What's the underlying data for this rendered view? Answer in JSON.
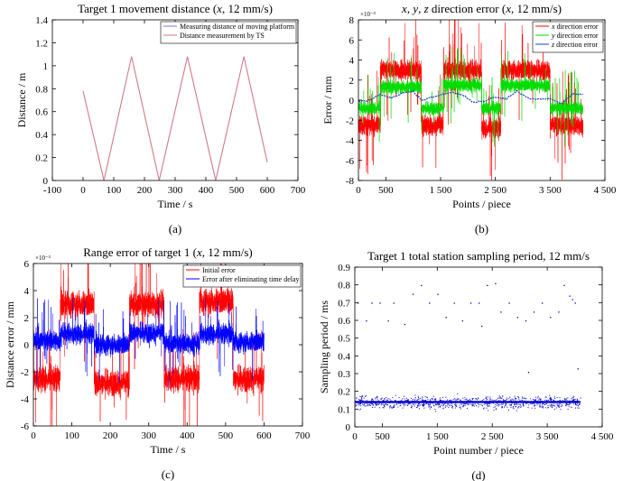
{
  "chart_data": [
    {
      "type": "line",
      "panel": "(a)",
      "title": "Target 1 movement distance (x, 12 mm/s)",
      "title_parts": [
        "Target 1 movement distance (",
        "x",
        ", 12 mm/s)"
      ],
      "xlabel": "Time / s",
      "ylabel": "Distance / m",
      "xlim": [
        -100,
        700
      ],
      "ylim": [
        0,
        1.4
      ],
      "xticks": [
        -100,
        0,
        100,
        200,
        300,
        400,
        500,
        600,
        700
      ],
      "yticks": [
        0,
        0.2,
        0.4,
        0.6,
        0.8,
        1.0,
        1.2,
        1.4
      ],
      "ytick_labels": [
        "0",
        "0.2",
        "0.4",
        "0.6",
        "0.8",
        "1",
        "1.2",
        "1.4"
      ],
      "legend": [
        "Measuring distance of moving platform",
        "Distance measurement by TS"
      ],
      "legend_position": "top-right",
      "colors": [
        "#7777cc",
        "#dd7777"
      ],
      "series": [
        {
          "name": "Measuring distance of moving platform",
          "x": [
            0,
            68,
            158,
            248,
            340,
            432,
            524,
            600
          ],
          "y": [
            0.78,
            0.0,
            1.08,
            0.0,
            1.08,
            0.0,
            1.08,
            0.16
          ]
        },
        {
          "name": "Distance measurement by TS",
          "x": [
            0,
            68,
            158,
            248,
            340,
            432,
            524,
            600
          ],
          "y": [
            0.78,
            0.0,
            1.08,
            0.0,
            1.08,
            0.0,
            1.08,
            0.16
          ]
        }
      ]
    },
    {
      "type": "line",
      "panel": "(b)",
      "title": "x, y, z direction error (x, 12 mm/s)",
      "title_parts": [
        "x",
        ", ",
        "y",
        ", ",
        "z",
        " direction error (",
        "x",
        ", 12 mm/s)"
      ],
      "xlabel": "Points / piece",
      "ylabel": "Error / mm",
      "y_multiplier": "×10⁻³",
      "xlim": [
        0,
        4500
      ],
      "ylim": [
        -8,
        8
      ],
      "xticks": [
        0,
        500,
        1500,
        2500,
        3500,
        4500
      ],
      "xtick_labels": [
        "0",
        "500",
        "1 500",
        "2 500",
        "3 500",
        "4 500"
      ],
      "yticks": [
        -8,
        -6,
        -4,
        -2,
        0,
        2,
        4,
        6,
        8
      ],
      "legend": [
        "x direction error",
        "y direction error",
        "z direction error"
      ],
      "legend_position": "top-right",
      "colors": [
        "#ff0000",
        "#00dd00",
        "#1f3fbf"
      ],
      "n_points": 4100,
      "series": [
        {
          "name": "x direction error",
          "segments_x": [
            0,
            400,
            1150,
            1550,
            2250,
            2600,
            3500,
            4100
          ],
          "levels": [
            -2.5,
            3.0,
            -2.5,
            3.0,
            -2.8,
            3.0,
            -2.5
          ],
          "noise": 0.9,
          "spikes": 3.5
        },
        {
          "name": "y direction error",
          "segments_x": [
            0,
            400,
            1150,
            1550,
            2250,
            2600,
            3500,
            4100
          ],
          "levels": [
            -0.8,
            1.3,
            -0.8,
            1.5,
            -0.8,
            1.5,
            -0.8
          ],
          "noise": 0.6,
          "spikes": 2.5
        },
        {
          "name": "z direction error",
          "x": [
            0,
            200,
            400,
            600,
            800,
            1000,
            1150,
            1300,
            1500,
            1700,
            1900,
            2100,
            2300,
            2500,
            2700,
            2900,
            3100,
            3300,
            3500,
            3700,
            3900,
            4100
          ],
          "y": [
            -0.1,
            0.0,
            0.6,
            0.2,
            0.7,
            0.9,
            0.0,
            0.2,
            0.5,
            0.8,
            0.5,
            -0.2,
            -0.1,
            0.3,
            0.1,
            0.9,
            0.2,
            0.1,
            0.2,
            -0.4,
            0.6,
            0.6
          ]
        }
      ]
    },
    {
      "type": "line",
      "panel": "(c)",
      "title": "Range error of target 1 (x, 12 mm/s)",
      "title_parts": [
        "Range error of target 1 (",
        "x",
        ", 12 mm/s)"
      ],
      "xlabel": "Time / s",
      "ylabel": "Distance error / mm",
      "y_multiplier": "×10⁻³",
      "xlim": [
        0,
        700
      ],
      "ylim": [
        -6,
        6
      ],
      "xticks": [
        0,
        100,
        200,
        300,
        400,
        500,
        600,
        700
      ],
      "yticks": [
        -6,
        -4,
        -2,
        0,
        2,
        4,
        6
      ],
      "legend": [
        "Initial error",
        "Error after eliminating time delay"
      ],
      "legend_position": "top-right",
      "colors": [
        "#ff0000",
        "#0000ff"
      ],
      "n_points": 3600,
      "series": [
        {
          "name": "Initial error",
          "segments_x": [
            0,
            70,
            158,
            250,
            340,
            432,
            520,
            600
          ],
          "levels": [
            -2.5,
            3.0,
            -2.8,
            3.0,
            -2.5,
            3.2,
            -2.5
          ],
          "noise": 0.9,
          "spikes": 3.0
        },
        {
          "name": "Error after eliminating time delay",
          "segments_x": [
            0,
            70,
            158,
            250,
            340,
            432,
            520,
            600
          ],
          "levels": [
            0.3,
            0.8,
            0.0,
            0.9,
            0.1,
            0.8,
            0.2
          ],
          "noise": 0.7,
          "spikes": 2.0
        }
      ]
    },
    {
      "type": "scatter",
      "panel": "(d)",
      "title": "Target 1 total station sampling period, 12 mm/s",
      "title_parts": [
        "Target 1 total station sampling period, 12 mm/s"
      ],
      "xlabel": "Point number / piece",
      "ylabel": "Sampling period / ms",
      "xlim": [
        0,
        4500
      ],
      "ylim": [
        0,
        0.9
      ],
      "xticks": [
        0,
        500,
        1500,
        2500,
        3500,
        4500
      ],
      "xtick_labels": [
        "0",
        "500",
        "1 500",
        "2 500",
        "3 500",
        "4 500"
      ],
      "yticks": [
        0,
        0.1,
        0.2,
        0.3,
        0.4,
        0.5,
        0.6,
        0.7,
        0.8,
        0.9
      ],
      "colors": [
        "#0000cc"
      ],
      "series": [
        {
          "name": "Sampling period",
          "baseline": 0.14,
          "n_points": 4100,
          "outliers_x": [
            50,
            200,
            300,
            450,
            600,
            700,
            900,
            1050,
            1200,
            1350,
            1500,
            1650,
            1800,
            1950,
            2100,
            2250,
            2400,
            2550,
            2650,
            2800,
            2950,
            3100,
            3250,
            3400,
            3550,
            3700,
            3800,
            3900,
            4000,
            3950,
            4050,
            3150,
            2300
          ],
          "outliers_y": [
            0.7,
            0.6,
            0.7,
            0.7,
            0.6,
            0.7,
            0.58,
            0.75,
            0.8,
            0.7,
            0.75,
            0.62,
            0.7,
            0.6,
            0.7,
            0.7,
            0.8,
            0.81,
            0.65,
            0.7,
            0.62,
            0.6,
            0.65,
            0.7,
            0.62,
            0.65,
            0.8,
            0.74,
            0.7,
            0.72,
            0.33,
            0.31,
            0.57
          ]
        }
      ]
    }
  ],
  "captions": [
    "(a)",
    "(b)",
    "(c)",
    "(d)"
  ]
}
